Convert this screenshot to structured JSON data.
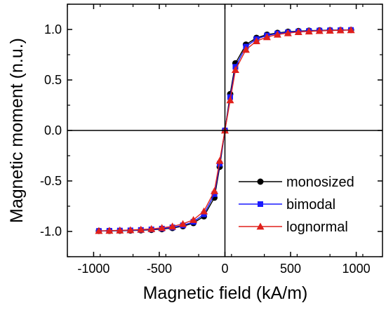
{
  "chart_data": {
    "type": "line",
    "title": "",
    "xlabel": "Magnetic field (kA/m)",
    "ylabel": "Magnetic moment (n.u.)",
    "xlim": [
      -1200,
      1200
    ],
    "ylim": [
      -1.25,
      1.25
    ],
    "x_ticks": [
      -1000,
      -500,
      0,
      500,
      1000
    ],
    "x_tick_labels": [
      "-1000",
      "-500",
      "0",
      "500",
      "1000"
    ],
    "y_ticks": [
      -1.0,
      -0.5,
      0.0,
      0.5,
      1.0
    ],
    "y_tick_labels": [
      "-1.0",
      "-0.5",
      "0.0",
      "0.5",
      "1.0"
    ],
    "grid": false,
    "reference_lines": {
      "x": 0,
      "y": 0
    },
    "legend_position": "lower-right",
    "series": [
      {
        "name": "monosized",
        "color": "#000000",
        "marker": "circle",
        "x": [
          -960,
          -880,
          -800,
          -720,
          -640,
          -560,
          -480,
          -400,
          -320,
          -240,
          -160,
          -80,
          -40,
          0,
          40,
          80,
          160,
          240,
          320,
          400,
          480,
          560,
          640,
          720,
          800,
          880,
          960
        ],
        "y": [
          -0.995,
          -0.994,
          -0.993,
          -0.991,
          -0.988,
          -0.984,
          -0.977,
          -0.966,
          -0.948,
          -0.917,
          -0.85,
          -0.665,
          -0.36,
          0.0,
          0.36,
          0.665,
          0.85,
          0.917,
          0.948,
          0.966,
          0.977,
          0.984,
          0.988,
          0.991,
          0.993,
          0.994,
          0.995
        ]
      },
      {
        "name": "bimodal",
        "color": "#1a1aff",
        "marker": "square",
        "x": [
          -960,
          -880,
          -800,
          -720,
          -640,
          -560,
          -480,
          -400,
          -320,
          -240,
          -160,
          -80,
          -40,
          0,
          40,
          80,
          160,
          240,
          320,
          400,
          480,
          560,
          640,
          720,
          800,
          880,
          960
        ],
        "y": [
          -0.995,
          -0.993,
          -0.991,
          -0.989,
          -0.985,
          -0.98,
          -0.972,
          -0.96,
          -0.94,
          -0.905,
          -0.83,
          -0.63,
          -0.33,
          0.0,
          0.33,
          0.63,
          0.83,
          0.905,
          0.94,
          0.96,
          0.972,
          0.98,
          0.985,
          0.989,
          0.991,
          0.993,
          0.995
        ]
      },
      {
        "name": "lognormal",
        "color": "#e0201b",
        "marker": "triangle",
        "x": [
          -960,
          -880,
          -800,
          -720,
          -640,
          -560,
          -480,
          -400,
          -320,
          -240,
          -160,
          -80,
          -40,
          0,
          40,
          80,
          160,
          240,
          320,
          400,
          480,
          560,
          640,
          720,
          800,
          880,
          960
        ],
        "y": [
          -0.994,
          -0.992,
          -0.989,
          -0.986,
          -0.981,
          -0.975,
          -0.964,
          -0.95,
          -0.925,
          -0.885,
          -0.8,
          -0.6,
          -0.3,
          0.0,
          0.3,
          0.6,
          0.8,
          0.885,
          0.925,
          0.95,
          0.964,
          0.975,
          0.981,
          0.986,
          0.989,
          0.992,
          0.994
        ]
      }
    ]
  }
}
